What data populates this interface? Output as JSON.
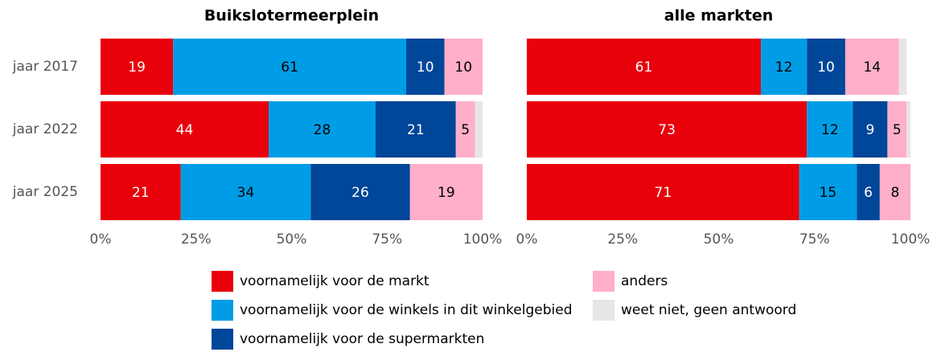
{
  "chart_data": [
    {
      "type": "stacked-bar-horizontal",
      "title": "Buikslotermeerplein",
      "categories": [
        "jaar 2017",
        "jaar 2022",
        "jaar 2025"
      ],
      "series": [
        {
          "name": "voornamelijk voor de markt",
          "color": "#e8000b",
          "label_color": "#ffffff",
          "values": [
            19,
            44,
            21
          ]
        },
        {
          "name": "voornamelijk voor de winkels in dit winkelgebied",
          "color": "#009de6",
          "label_color": "#000000",
          "values": [
            61,
            28,
            34
          ]
        },
        {
          "name": "voornamelijk voor de supermarkten",
          "color": "#004699",
          "label_color": "#ffffff",
          "values": [
            10,
            21,
            26
          ]
        },
        {
          "name": "anders",
          "color": "#ffafc9",
          "label_color": "#000000",
          "values": [
            10,
            5,
            19
          ]
        },
        {
          "name": "weet niet, geen antwoord",
          "color": "#e6e6e6",
          "show_labels": false,
          "values": [
            0,
            2,
            0
          ]
        }
      ],
      "xlim": [
        0,
        100
      ],
      "xticks": [
        {
          "value": 0,
          "label": "0%"
        },
        {
          "value": 25,
          "label": "25%"
        },
        {
          "value": 50,
          "label": "50%"
        },
        {
          "value": 75,
          "label": "75%"
        },
        {
          "value": 100,
          "label": "100%"
        }
      ]
    },
    {
      "type": "stacked-bar-horizontal",
      "title": "alle markten",
      "series": [
        {
          "name": "voornamelijk voor de markt",
          "color": "#e8000b",
          "label_color": "#ffffff",
          "values": [
            61,
            73,
            71
          ]
        },
        {
          "name": "voornamelijk voor de winkels in dit winkelgebied",
          "color": "#009de6",
          "label_color": "#000000",
          "values": [
            12,
            12,
            15
          ]
        },
        {
          "name": "voornamelijk voor de supermarkten",
          "color": "#004699",
          "label_color": "#ffffff",
          "values": [
            10,
            9,
            6
          ]
        },
        {
          "name": "anders",
          "color": "#ffafc9",
          "label_color": "#000000",
          "values": [
            14,
            5,
            8
          ]
        },
        {
          "name": "weet niet, geen antwoord",
          "color": "#e6e6e6",
          "show_labels": false,
          "values": [
            2,
            1,
            0
          ]
        }
      ],
      "xlim": [
        0,
        100
      ],
      "xticks": [
        {
          "value": 0,
          "label": "0%"
        },
        {
          "value": 25,
          "label": "25%"
        },
        {
          "value": 50,
          "label": "50%"
        },
        {
          "value": 75,
          "label": "75%"
        },
        {
          "value": 100,
          "label": "100%"
        }
      ]
    }
  ]
}
